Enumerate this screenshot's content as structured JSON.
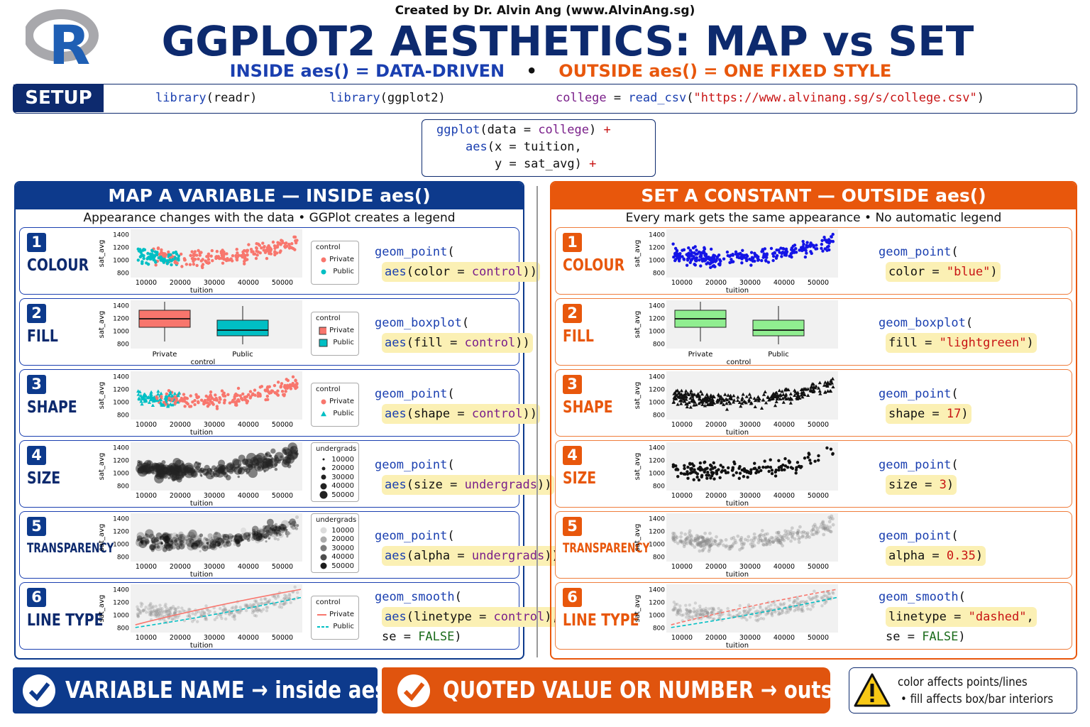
{
  "logo": "R",
  "header": {
    "credit": "Created by Dr. Alvin Ang (www.AlvinAng.sg)",
    "title": "GGPLOT2 AESTHETICS: MAP vs SET",
    "subtitle_left": "INSIDE aes() = DATA-DRIVEN",
    "separator": "•",
    "subtitle_right": "OUTSIDE aes() = ONE FIXED STYLE"
  },
  "setup": {
    "label": "SETUP",
    "code": [
      "library(readr)",
      "library(ggplot2)",
      "college = read_csv(\"https://www.alvinang.sg/s/college.csv\")"
    ]
  },
  "base_code": [
    "ggplot(data = college) +",
    "aes(x = tuition,",
    "y = sat_avg) +"
  ],
  "plot_axes": {
    "y_label": "sat_avg",
    "x_label": "tuition",
    "yticks": [
      1400,
      1200,
      1000,
      800
    ],
    "xticks": [
      10000,
      20000,
      30000,
      40000,
      50000
    ],
    "box_categories": [
      "Private",
      "Public"
    ],
    "box_x_label": "control"
  },
  "legends": {
    "control": {
      "title": "control",
      "items": [
        "Private",
        "Public"
      ]
    },
    "undergrads": {
      "title": "undergrads",
      "items": [
        10000,
        20000,
        30000,
        40000,
        50000
      ]
    }
  },
  "panels": [
    {
      "side": "map",
      "title": "MAP A VARIABLE — INSIDE aes()",
      "subtitle": "Appearance changes with the data  •  GGPlot creates a legend",
      "rows": [
        {
          "number": "1",
          "label": "COLOUR",
          "legend": "control",
          "code": [
            "geom_point(",
            "aes(color = control))"
          ]
        },
        {
          "number": "2",
          "label": "FILL",
          "legend": "control",
          "code": [
            "geom_boxplot(",
            "aes(fill = control))"
          ]
        },
        {
          "number": "3",
          "label": "SHAPE",
          "legend": "control",
          "code": [
            "geom_point(",
            "aes(shape = control))"
          ]
        },
        {
          "number": "4",
          "label": "SIZE",
          "legend": "undergrads",
          "code": [
            "geom_point(",
            "aes(size = undergrads))"
          ]
        },
        {
          "number": "5",
          "label": "TRANSPARENCY",
          "legend": "undergrads",
          "code": [
            "geom_point(",
            "aes(alpha = undergrads))"
          ]
        },
        {
          "number": "6",
          "label": "LINE TYPE",
          "legend": "control",
          "code": [
            "geom_smooth(",
            "aes(linetype = control),",
            "se = FALSE)"
          ]
        }
      ]
    },
    {
      "side": "set",
      "title": "SET A CONSTANT — OUTSIDE aes()",
      "subtitle": "Every mark gets the same appearance  •  No automatic legend",
      "rows": [
        {
          "number": "1",
          "label": "COLOUR",
          "code": [
            "geom_point(",
            "color = \"blue\")"
          ]
        },
        {
          "number": "2",
          "label": "FILL",
          "code": [
            "geom_boxplot(",
            "fill = \"lightgreen\")"
          ]
        },
        {
          "number": "3",
          "label": "SHAPE",
          "code": [
            "geom_point(",
            "shape = 17)"
          ]
        },
        {
          "number": "4",
          "label": "SIZE",
          "code": [
            "geom_point(",
            "size = 3)"
          ]
        },
        {
          "number": "5",
          "label": "TRANSPARENCY",
          "code": [
            "geom_point(",
            "alpha = 0.35)"
          ]
        },
        {
          "number": "6",
          "label": "LINE TYPE",
          "code": [
            "geom_smooth(",
            "linetype = \"dashed\",",
            "se = FALSE)"
          ]
        }
      ]
    }
  ],
  "footer": {
    "map": "VARIABLE NAME → inside aes()",
    "set": "QUOTED VALUE OR NUMBER → outside aes()",
    "note": [
      "color affects points/lines",
      "• fill affects box/bar interiors"
    ]
  }
}
